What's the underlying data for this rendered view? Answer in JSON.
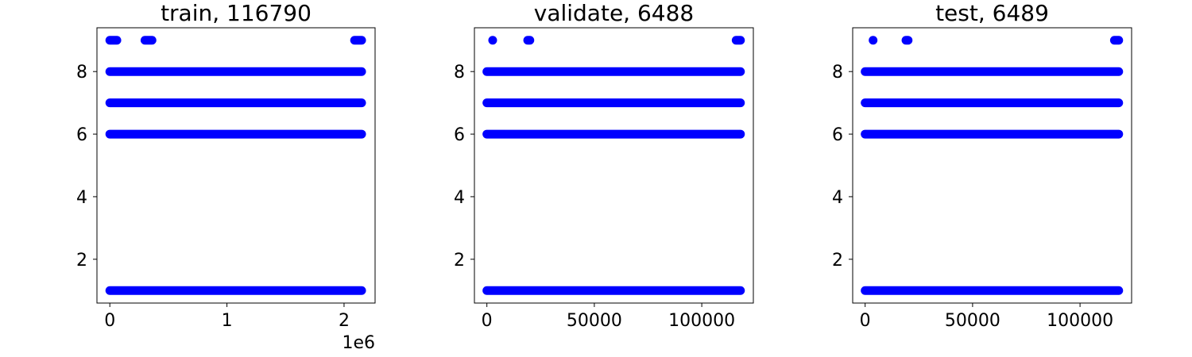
{
  "colors": {
    "marker": "#0000ff",
    "axes": "#000000",
    "background": "#ffffff"
  },
  "chart_data": [
    {
      "type": "scatter",
      "title": "train, 116790",
      "xlabel": "",
      "ylabel": "",
      "xlim": [
        -110000,
        2265000
      ],
      "ylim": [
        0.6,
        9.4
      ],
      "xticks": [
        0,
        1000000,
        2000000
      ],
      "xtick_labels": [
        "0",
        "1",
        "2"
      ],
      "x_offset_label": "1e6",
      "yticks": [
        2,
        4,
        6,
        8
      ],
      "ytick_labels": [
        "2",
        "4",
        "6",
        "8"
      ],
      "grid": false,
      "series": [
        {
          "segments": [
            {
              "y": 1,
              "x_start": 0,
              "x_end": 2150000
            },
            {
              "y": 6,
              "x_start": 0,
              "x_end": 2150000
            },
            {
              "y": 7,
              "x_start": 0,
              "x_end": 2150000
            },
            {
              "y": 8,
              "x_start": 0,
              "x_end": 2150000
            },
            {
              "y": 9,
              "x_start": 0,
              "x_end": 60000
            },
            {
              "y": 9,
              "x_start": 300000,
              "x_end": 360000
            },
            {
              "y": 9,
              "x_start": 2090000,
              "x_end": 2150000
            }
          ]
        }
      ]
    },
    {
      "type": "scatter",
      "title": "validate, 6488",
      "xlabel": "",
      "ylabel": "",
      "xlim": [
        -5800,
        124000
      ],
      "ylim": [
        0.6,
        9.4
      ],
      "xticks": [
        0,
        50000,
        100000
      ],
      "xtick_labels": [
        "0",
        "50000",
        "100000"
      ],
      "x_offset_label": "",
      "yticks": [
        2,
        4,
        6,
        8
      ],
      "ytick_labels": [
        "2",
        "4",
        "6",
        "8"
      ],
      "grid": false,
      "series": [
        {
          "segments": [
            {
              "y": 1,
              "x_start": 0,
              "x_end": 118000
            },
            {
              "y": 6,
              "x_start": 0,
              "x_end": 118000
            },
            {
              "y": 7,
              "x_start": 0,
              "x_end": 118000
            },
            {
              "y": 8,
              "x_start": 0,
              "x_end": 118000
            },
            {
              "y": 9,
              "x_start": 2700,
              "x_end": 2700
            },
            {
              "y": 9,
              "x_start": 19000,
              "x_end": 20000
            },
            {
              "y": 9,
              "x_start": 116000,
              "x_end": 118000
            }
          ]
        }
      ]
    },
    {
      "type": "scatter",
      "title": "test, 6489",
      "xlabel": "",
      "ylabel": "",
      "xlim": [
        -5800,
        124000
      ],
      "ylim": [
        0.6,
        9.4
      ],
      "xticks": [
        0,
        50000,
        100000
      ],
      "xtick_labels": [
        "0",
        "50000",
        "100000"
      ],
      "x_offset_label": "",
      "yticks": [
        2,
        4,
        6,
        8
      ],
      "ytick_labels": [
        "2",
        "4",
        "6",
        "8"
      ],
      "grid": false,
      "series": [
        {
          "segments": [
            {
              "y": 1,
              "x_start": 0,
              "x_end": 118000
            },
            {
              "y": 6,
              "x_start": 0,
              "x_end": 118000
            },
            {
              "y": 7,
              "x_start": 0,
              "x_end": 118000
            },
            {
              "y": 8,
              "x_start": 0,
              "x_end": 118000
            },
            {
              "y": 9,
              "x_start": 3700,
              "x_end": 3700
            },
            {
              "y": 9,
              "x_start": 19000,
              "x_end": 20000
            },
            {
              "y": 9,
              "x_start": 116000,
              "x_end": 118000
            }
          ]
        }
      ]
    }
  ]
}
